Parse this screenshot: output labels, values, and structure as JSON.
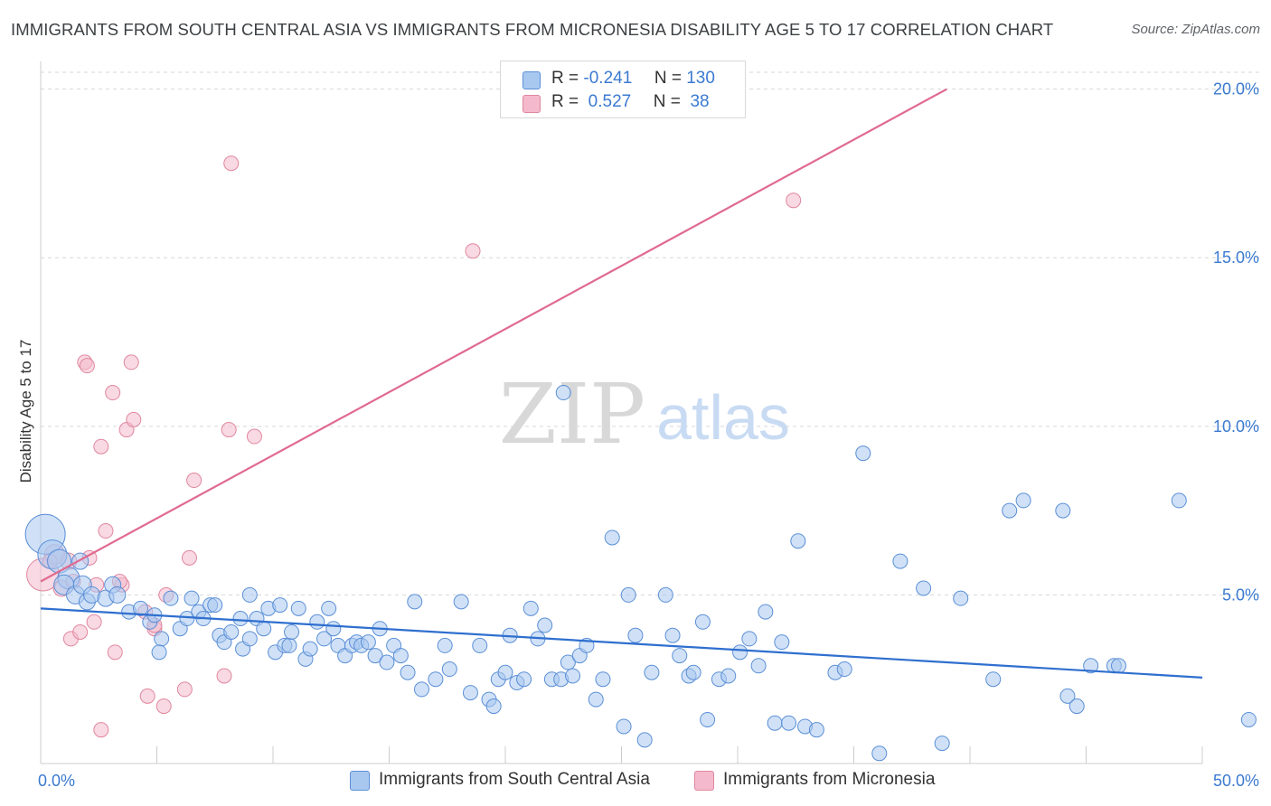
{
  "title": "IMMIGRANTS FROM SOUTH CENTRAL ASIA VS IMMIGRANTS FROM MICRONESIA DISABILITY AGE 5 TO 17 CORRELATION CHART",
  "source": "Source: ZipAtlas.com",
  "watermark": {
    "zip": "ZIP",
    "atlas": "atlas"
  },
  "legend": {
    "rows": [
      {
        "r_label": "R =",
        "r_value": "-0.241",
        "n_label": "N =",
        "n_value": "130"
      },
      {
        "r_label": "R =",
        "r_value": " 0.527",
        "n_label": "N =",
        "n_value": " 38"
      }
    ]
  },
  "bottom_legend": {
    "series_a": "Immigrants from South Central Asia",
    "series_b": "Immigrants from Micronesia"
  },
  "colors": {
    "blue_fill": "#a9c8f0",
    "blue_stroke": "#5b8fd6",
    "blue_line": "#2f6fcf",
    "pink_fill": "#f4b9cc",
    "pink_stroke": "#e0879f",
    "pink_line": "#e06a90",
    "tick_text": "#3b7ad0",
    "grid": "#d7d7d7"
  },
  "chart_data": {
    "type": "scatter",
    "title": "IMMIGRANTS FROM SOUTH CENTRAL ASIA VS IMMIGRANTS FROM MICRONESIA DISABILITY AGE 5 TO 17 CORRELATION CHART",
    "xlabel": "",
    "ylabel": "Disability Age 5 to 17",
    "xlim": [
      0,
      50
    ],
    "ylim": [
      0,
      20.5
    ],
    "x_tick_labels": [
      "0.0%",
      "50.0%"
    ],
    "y_ticks": [
      5,
      10,
      15,
      20
    ],
    "y_tick_labels": [
      "5.0%",
      "10.0%",
      "15.0%",
      "20.0%"
    ],
    "grid": true,
    "legend_position": "top-center",
    "series": [
      {
        "name": "Immigrants from South Central Asia",
        "color": "#5b8fd6",
        "R": -0.241,
        "N": 130,
        "trend": {
          "x": [
            0,
            50
          ],
          "y": [
            4.6,
            2.55
          ]
        },
        "points": [
          [
            0.2,
            6.8,
            22
          ],
          [
            0.5,
            6.2,
            16
          ],
          [
            0.8,
            6.0,
            13
          ],
          [
            1.2,
            5.5,
            12
          ],
          [
            1.0,
            5.3,
            11
          ],
          [
            1.5,
            5.0,
            10
          ],
          [
            1.8,
            5.3,
            10
          ],
          [
            2.0,
            4.8,
            9
          ],
          [
            2.2,
            5.0,
            9
          ],
          [
            2.8,
            4.9,
            9
          ],
          [
            1.7,
            6.0,
            9
          ],
          [
            3.1,
            5.3,
            9
          ],
          [
            3.3,
            5.0,
            9
          ],
          [
            3.8,
            4.5,
            8
          ],
          [
            4.3,
            4.6,
            8
          ],
          [
            4.7,
            4.2,
            8
          ],
          [
            4.9,
            4.4,
            8
          ],
          [
            5.2,
            3.7,
            8
          ],
          [
            5.1,
            3.3,
            8
          ],
          [
            5.6,
            4.9,
            8
          ],
          [
            6.0,
            4.0,
            8
          ],
          [
            6.3,
            4.3,
            8
          ],
          [
            6.5,
            4.9,
            8
          ],
          [
            6.8,
            4.5,
            8
          ],
          [
            7.0,
            4.3,
            8
          ],
          [
            7.3,
            4.7,
            8
          ],
          [
            7.5,
            4.7,
            8
          ],
          [
            7.7,
            3.8,
            8
          ],
          [
            7.9,
            3.6,
            8
          ],
          [
            8.2,
            3.9,
            8
          ],
          [
            8.6,
            4.3,
            8
          ],
          [
            8.7,
            3.4,
            8
          ],
          [
            9.0,
            3.7,
            8
          ],
          [
            9.3,
            4.3,
            8
          ],
          [
            9.6,
            4.0,
            8
          ],
          [
            9.0,
            5.0,
            8
          ],
          [
            9.8,
            4.6,
            8
          ],
          [
            10.1,
            3.3,
            8
          ],
          [
            10.5,
            3.5,
            8
          ],
          [
            10.7,
            3.5,
            8
          ],
          [
            10.3,
            4.7,
            8
          ],
          [
            10.8,
            3.9,
            8
          ],
          [
            11.1,
            4.6,
            8
          ],
          [
            11.4,
            3.1,
            8
          ],
          [
            11.6,
            3.4,
            8
          ],
          [
            11.9,
            4.2,
            8
          ],
          [
            12.2,
            3.7,
            8
          ],
          [
            12.4,
            4.6,
            8
          ],
          [
            12.6,
            4.0,
            8
          ],
          [
            12.8,
            3.5,
            8
          ],
          [
            13.1,
            3.2,
            8
          ],
          [
            13.4,
            3.5,
            8
          ],
          [
            13.6,
            3.6,
            8
          ],
          [
            13.8,
            3.5,
            8
          ],
          [
            14.1,
            3.6,
            8
          ],
          [
            14.4,
            3.2,
            8
          ],
          [
            14.6,
            4.0,
            8
          ],
          [
            14.9,
            3.0,
            8
          ],
          [
            15.2,
            3.5,
            8
          ],
          [
            15.5,
            3.2,
            8
          ],
          [
            15.8,
            2.7,
            8
          ],
          [
            16.1,
            4.8,
            8
          ],
          [
            16.4,
            2.2,
            8
          ],
          [
            17.0,
            2.5,
            8
          ],
          [
            17.4,
            3.5,
            8
          ],
          [
            17.6,
            2.8,
            8
          ],
          [
            18.1,
            4.8,
            8
          ],
          [
            18.5,
            2.1,
            8
          ],
          [
            18.9,
            3.5,
            8
          ],
          [
            19.3,
            1.9,
            8
          ],
          [
            19.5,
            1.7,
            8
          ],
          [
            19.7,
            2.5,
            8
          ],
          [
            20.0,
            2.7,
            8
          ],
          [
            20.2,
            3.8,
            8
          ],
          [
            20.5,
            2.4,
            8
          ],
          [
            20.8,
            2.5,
            8
          ],
          [
            21.1,
            4.6,
            8
          ],
          [
            21.4,
            3.7,
            8
          ],
          [
            21.7,
            4.1,
            8
          ],
          [
            22.0,
            2.5,
            8
          ],
          [
            22.4,
            2.5,
            8
          ],
          [
            22.7,
            3.0,
            8
          ],
          [
            22.9,
            2.6,
            8
          ],
          [
            23.2,
            3.2,
            8
          ],
          [
            23.5,
            3.5,
            8
          ],
          [
            23.9,
            1.9,
            8
          ],
          [
            24.2,
            2.5,
            8
          ],
          [
            24.6,
            6.7,
            8
          ],
          [
            25.1,
            1.1,
            8
          ],
          [
            25.3,
            5.0,
            8
          ],
          [
            25.6,
            3.8,
            8
          ],
          [
            26.0,
            0.7,
            8
          ],
          [
            26.3,
            2.7,
            8
          ],
          [
            26.9,
            5.0,
            8
          ],
          [
            27.2,
            3.8,
            8
          ],
          [
            27.5,
            3.2,
            8
          ],
          [
            27.9,
            2.6,
            8
          ],
          [
            28.1,
            2.7,
            8
          ],
          [
            28.5,
            4.2,
            8
          ],
          [
            28.7,
            1.3,
            8
          ],
          [
            29.2,
            2.5,
            8
          ],
          [
            29.6,
            2.6,
            8
          ],
          [
            30.1,
            3.3,
            8
          ],
          [
            30.5,
            3.7,
            8
          ],
          [
            30.9,
            2.9,
            8
          ],
          [
            31.2,
            4.5,
            8
          ],
          [
            31.6,
            1.2,
            8
          ],
          [
            31.9,
            3.6,
            8
          ],
          [
            32.2,
            1.2,
            8
          ],
          [
            32.6,
            6.6,
            8
          ],
          [
            32.9,
            1.1,
            8
          ],
          [
            33.4,
            1.0,
            8
          ],
          [
            34.2,
            2.7,
            8
          ],
          [
            34.6,
            2.8,
            8
          ],
          [
            36.1,
            0.3,
            8
          ],
          [
            37.0,
            6.0,
            8
          ],
          [
            38.0,
            5.2,
            8
          ],
          [
            38.8,
            0.6,
            8
          ],
          [
            39.6,
            4.9,
            8
          ],
          [
            41.0,
            2.5,
            8
          ],
          [
            41.7,
            7.5,
            8
          ],
          [
            42.3,
            7.8,
            8
          ],
          [
            44.0,
            7.5,
            8
          ],
          [
            44.2,
            2.0,
            8
          ],
          [
            44.6,
            1.7,
            8
          ],
          [
            45.2,
            2.9,
            8
          ],
          [
            46.2,
            2.9,
            8
          ],
          [
            46.4,
            2.9,
            8
          ],
          [
            49.0,
            7.8,
            8
          ],
          [
            52.0,
            1.3,
            8
          ],
          [
            22.5,
            11.0,
            8
          ],
          [
            35.4,
            9.2,
            8
          ]
        ]
      },
      {
        "name": "Immigrants from Micronesia",
        "color": "#e0879f",
        "R": 0.527,
        "N": 38,
        "trend": {
          "x": [
            0,
            39
          ],
          "y": [
            5.4,
            20.0
          ]
        },
        "points": [
          [
            0.1,
            5.6,
            18
          ],
          [
            0.6,
            6.2,
            11
          ],
          [
            0.9,
            5.2,
            9
          ],
          [
            1.2,
            6.0,
            9
          ],
          [
            1.3,
            3.7,
            8
          ],
          [
            1.7,
            3.9,
            8
          ],
          [
            1.9,
            11.9,
            8
          ],
          [
            2.0,
            11.8,
            8
          ],
          [
            2.1,
            6.1,
            8
          ],
          [
            2.3,
            4.2,
            8
          ],
          [
            2.6,
            1.0,
            8
          ],
          [
            2.6,
            9.4,
            8
          ],
          [
            2.8,
            6.9,
            8
          ],
          [
            3.1,
            11.0,
            8
          ],
          [
            3.2,
            3.3,
            8
          ],
          [
            3.5,
            5.3,
            8
          ],
          [
            3.7,
            9.9,
            8
          ],
          [
            3.9,
            11.9,
            8
          ],
          [
            4.0,
            10.2,
            8
          ],
          [
            4.5,
            4.5,
            8
          ],
          [
            4.6,
            2.0,
            8
          ],
          [
            4.9,
            4.0,
            8
          ],
          [
            5.3,
            1.7,
            8
          ],
          [
            5.4,
            5.0,
            8
          ],
          [
            6.2,
            2.2,
            8
          ],
          [
            6.4,
            6.1,
            8
          ],
          [
            6.6,
            8.4,
            8
          ],
          [
            7.9,
            2.6,
            8
          ],
          [
            8.1,
            9.9,
            8
          ],
          [
            8.2,
            17.8,
            8
          ],
          [
            9.2,
            9.7,
            8
          ],
          [
            18.6,
            15.2,
            8
          ],
          [
            32.4,
            16.7,
            8
          ],
          [
            4.9,
            4.1,
            8
          ],
          [
            1.4,
            5.4,
            8
          ],
          [
            0.4,
            6.0,
            8
          ],
          [
            2.4,
            5.3,
            8
          ],
          [
            3.4,
            5.4,
            8
          ]
        ]
      }
    ]
  }
}
